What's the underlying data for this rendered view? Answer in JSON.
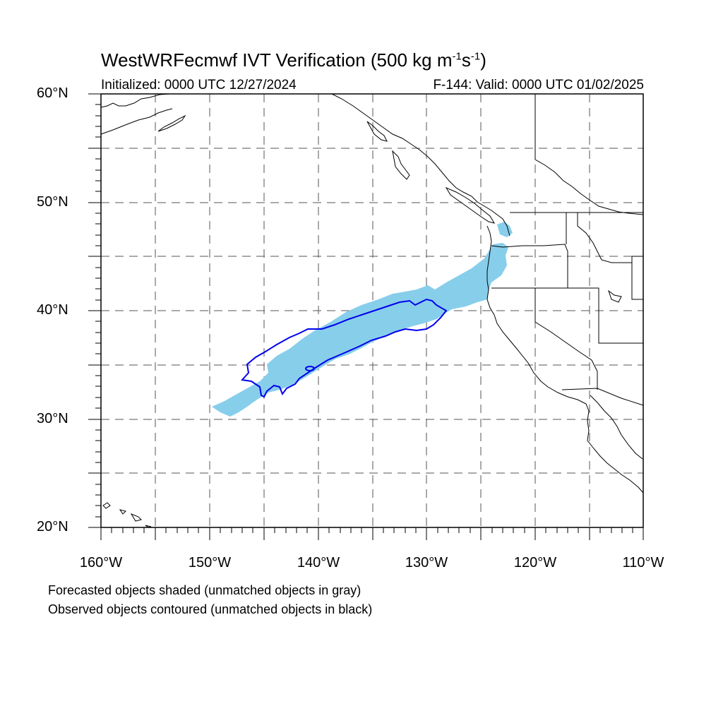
{
  "title": {
    "main": "WestWRFecmwf IVT Verification (500 kg m",
    "exp1": "-1",
    "mid": "s",
    "exp2": "-1",
    "end": ")"
  },
  "subtitle": {
    "initialized": "Initialized: 0000 UTC 12/27/2024",
    "valid": "F-144: Valid: 0000 UTC 01/02/2025"
  },
  "lat_labels": [
    "60°N",
    "50°N",
    "40°N",
    "30°N",
    "20°N"
  ],
  "lon_labels": [
    "160°W",
    "150°W",
    "140°W",
    "130°W",
    "120°W",
    "110°W"
  ],
  "legend": {
    "line1": "Forecasted objects shaded (unmatched objects in gray)",
    "line2": "Observed objects contoured (unmatched objects in black)"
  },
  "map_extent": {
    "lon_min": -160,
    "lon_max": -110,
    "lat_min": 20,
    "lat_max": 60
  },
  "colors": {
    "forecast_fill": "#87ceeb",
    "observed_contour": "#0000ee",
    "coastline": "#000000",
    "grid": "#555555"
  }
}
